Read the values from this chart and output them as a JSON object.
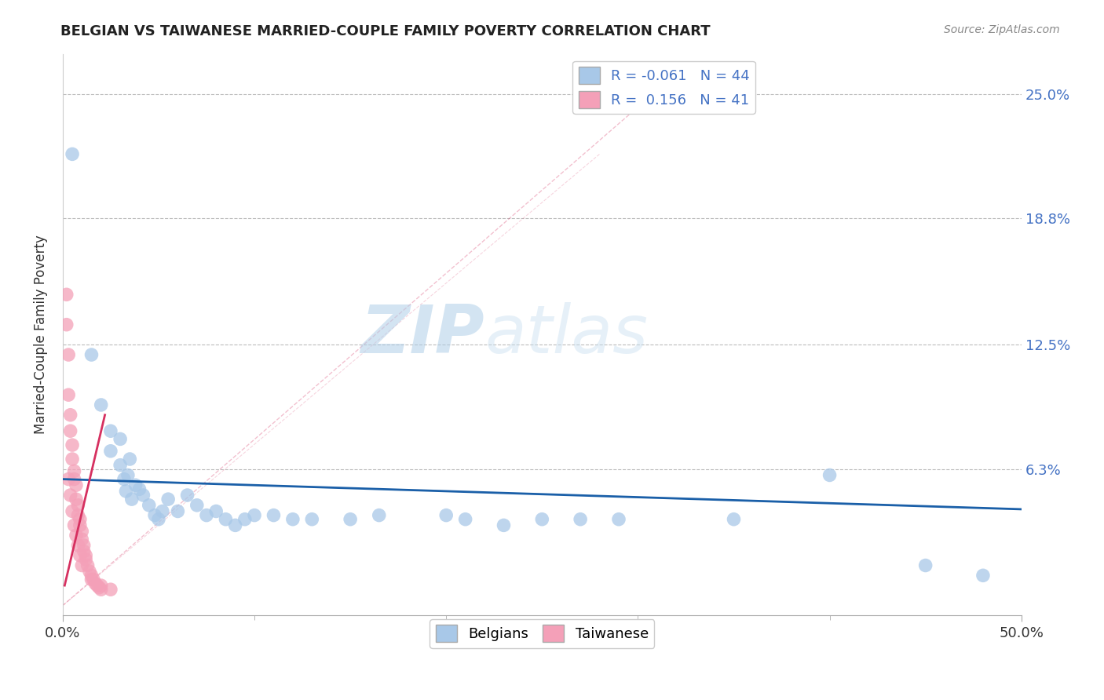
{
  "title": "BELGIAN VS TAIWANESE MARRIED-COUPLE FAMILY POVERTY CORRELATION CHART",
  "source": "Source: ZipAtlas.com",
  "ylabel": "Married-Couple Family Poverty",
  "xlim": [
    0.0,
    0.5
  ],
  "ylim": [
    -0.01,
    0.27
  ],
  "xtick_labels": [
    "0.0%",
    "50.0%"
  ],
  "xtick_positions": [
    0.0,
    0.5
  ],
  "ytick_labels": [
    "6.3%",
    "12.5%",
    "18.8%",
    "25.0%"
  ],
  "ytick_positions": [
    0.063,
    0.125,
    0.188,
    0.25
  ],
  "belgian_color": "#a8c8e8",
  "taiwanese_color": "#f4a0b8",
  "belgian_line_color": "#1a5fa8",
  "taiwanese_line_color": "#d63060",
  "r_belgian": -0.061,
  "n_belgian": 44,
  "r_taiwanese": 0.156,
  "n_taiwanese": 41,
  "background_color": "#ffffff",
  "grid_color": "#bbbbbb",
  "belgians_scatter": [
    [
      0.005,
      0.22
    ],
    [
      0.015,
      0.12
    ],
    [
      0.02,
      0.095
    ],
    [
      0.025,
      0.082
    ],
    [
      0.025,
      0.072
    ],
    [
      0.03,
      0.078
    ],
    [
      0.03,
      0.065
    ],
    [
      0.032,
      0.058
    ],
    [
      0.033,
      0.052
    ],
    [
      0.034,
      0.06
    ],
    [
      0.035,
      0.068
    ],
    [
      0.036,
      0.048
    ],
    [
      0.038,
      0.055
    ],
    [
      0.04,
      0.053
    ],
    [
      0.042,
      0.05
    ],
    [
      0.045,
      0.045
    ],
    [
      0.048,
      0.04
    ],
    [
      0.05,
      0.038
    ],
    [
      0.052,
      0.042
    ],
    [
      0.055,
      0.048
    ],
    [
      0.06,
      0.042
    ],
    [
      0.065,
      0.05
    ],
    [
      0.07,
      0.045
    ],
    [
      0.075,
      0.04
    ],
    [
      0.08,
      0.042
    ],
    [
      0.085,
      0.038
    ],
    [
      0.09,
      0.035
    ],
    [
      0.095,
      0.038
    ],
    [
      0.1,
      0.04
    ],
    [
      0.11,
      0.04
    ],
    [
      0.12,
      0.038
    ],
    [
      0.13,
      0.038
    ],
    [
      0.15,
      0.038
    ],
    [
      0.165,
      0.04
    ],
    [
      0.2,
      0.04
    ],
    [
      0.21,
      0.038
    ],
    [
      0.23,
      0.035
    ],
    [
      0.25,
      0.038
    ],
    [
      0.27,
      0.038
    ],
    [
      0.29,
      0.038
    ],
    [
      0.35,
      0.038
    ],
    [
      0.4,
      0.06
    ],
    [
      0.45,
      0.015
    ],
    [
      0.48,
      0.01
    ]
  ],
  "taiwanese_scatter": [
    [
      0.002,
      0.15
    ],
    [
      0.002,
      0.135
    ],
    [
      0.003,
      0.12
    ],
    [
      0.003,
      0.1
    ],
    [
      0.004,
      0.09
    ],
    [
      0.004,
      0.082
    ],
    [
      0.005,
      0.075
    ],
    [
      0.005,
      0.068
    ],
    [
      0.006,
      0.062
    ],
    [
      0.006,
      0.058
    ],
    [
      0.007,
      0.055
    ],
    [
      0.007,
      0.048
    ],
    [
      0.008,
      0.045
    ],
    [
      0.008,
      0.04
    ],
    [
      0.009,
      0.038
    ],
    [
      0.009,
      0.035
    ],
    [
      0.01,
      0.032
    ],
    [
      0.01,
      0.028
    ],
    [
      0.011,
      0.025
    ],
    [
      0.011,
      0.022
    ],
    [
      0.012,
      0.02
    ],
    [
      0.012,
      0.018
    ],
    [
      0.013,
      0.015
    ],
    [
      0.014,
      0.012
    ],
    [
      0.015,
      0.01
    ],
    [
      0.016,
      0.008
    ],
    [
      0.017,
      0.006
    ],
    [
      0.018,
      0.005
    ],
    [
      0.019,
      0.004
    ],
    [
      0.02,
      0.003
    ],
    [
      0.003,
      0.058
    ],
    [
      0.004,
      0.05
    ],
    [
      0.005,
      0.042
    ],
    [
      0.006,
      0.035
    ],
    [
      0.007,
      0.03
    ],
    [
      0.008,
      0.025
    ],
    [
      0.009,
      0.02
    ],
    [
      0.01,
      0.015
    ],
    [
      0.015,
      0.008
    ],
    [
      0.02,
      0.005
    ],
    [
      0.025,
      0.003
    ]
  ]
}
